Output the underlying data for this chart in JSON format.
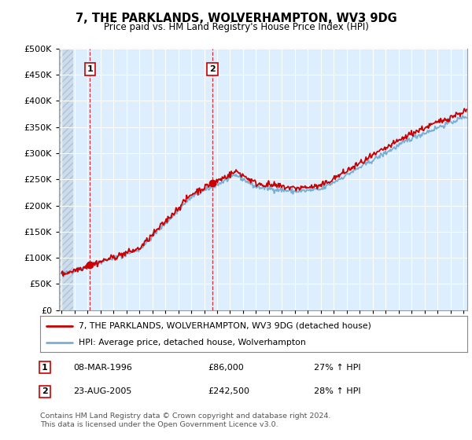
{
  "title": "7, THE PARKLANDS, WOLVERHAMPTON, WV3 9DG",
  "subtitle": "Price paid vs. HM Land Registry's House Price Index (HPI)",
  "legend_line1": "7, THE PARKLANDS, WOLVERHAMPTON, WV3 9DG (detached house)",
  "legend_line2": "HPI: Average price, detached house, Wolverhampton",
  "footer": "Contains HM Land Registry data © Crown copyright and database right 2024.\nThis data is licensed under the Open Government Licence v3.0.",
  "sale1_date": "08-MAR-1996",
  "sale1_price": "£86,000",
  "sale1_hpi": "27% ↑ HPI",
  "sale2_date": "23-AUG-2005",
  "sale2_price": "£242,500",
  "sale2_hpi": "28% ↑ HPI",
  "sale1_x": 1996.18,
  "sale1_y": 86000,
  "sale2_x": 2005.64,
  "sale2_y": 242500,
  "ylim": [
    0,
    500000
  ],
  "xlim": [
    1993.8,
    2025.3
  ],
  "yticks": [
    0,
    50000,
    100000,
    150000,
    200000,
    250000,
    300000,
    350000,
    400000,
    450000,
    500000
  ],
  "ytick_labels": [
    "£0",
    "£50K",
    "£100K",
    "£150K",
    "£200K",
    "£250K",
    "£300K",
    "£350K",
    "£400K",
    "£450K",
    "£500K"
  ],
  "xticks": [
    1994,
    1995,
    1996,
    1997,
    1998,
    1999,
    2000,
    2001,
    2002,
    2003,
    2004,
    2005,
    2006,
    2007,
    2008,
    2009,
    2010,
    2011,
    2012,
    2013,
    2014,
    2015,
    2016,
    2017,
    2018,
    2019,
    2020,
    2021,
    2022,
    2023,
    2024,
    2025
  ],
  "line_color_red": "#cc0000",
  "line_color_blue": "#7aafd4",
  "plot_bg_color": "#ddeeff",
  "hatch_xlim": 1994.9
}
